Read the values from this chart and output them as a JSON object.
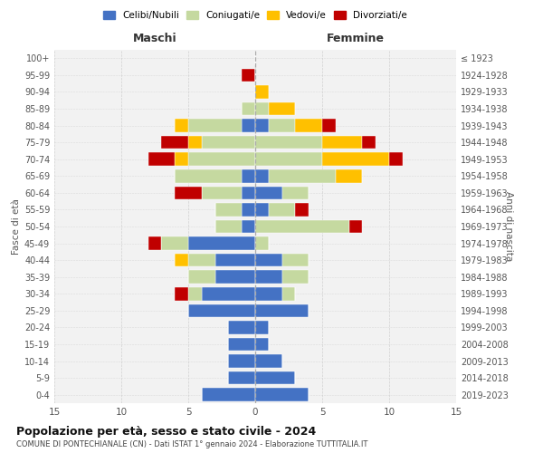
{
  "age_groups_bottom_to_top": [
    "0-4",
    "5-9",
    "10-14",
    "15-19",
    "20-24",
    "25-29",
    "30-34",
    "35-39",
    "40-44",
    "45-49",
    "50-54",
    "55-59",
    "60-64",
    "65-69",
    "70-74",
    "75-79",
    "80-84",
    "85-89",
    "90-94",
    "95-99",
    "100+"
  ],
  "birth_years_bottom_to_top": [
    "2019-2023",
    "2014-2018",
    "2009-2013",
    "2004-2008",
    "1999-2003",
    "1994-1998",
    "1989-1993",
    "1984-1988",
    "1979-1983",
    "1974-1978",
    "1969-1973",
    "1964-1968",
    "1959-1963",
    "1954-1958",
    "1949-1953",
    "1944-1948",
    "1939-1943",
    "1934-1938",
    "1929-1933",
    "1924-1928",
    "≤ 1923"
  ],
  "maschi_celibe": [
    4,
    2,
    2,
    2,
    2,
    5,
    4,
    3,
    3,
    5,
    1,
    1,
    1,
    1,
    0,
    0,
    1,
    0,
    0,
    0,
    0
  ],
  "maschi_coniugato": [
    0,
    0,
    0,
    0,
    0,
    0,
    1,
    2,
    2,
    2,
    2,
    2,
    3,
    5,
    5,
    4,
    4,
    1,
    0,
    0,
    0
  ],
  "maschi_vedovo": [
    0,
    0,
    0,
    0,
    0,
    0,
    0,
    0,
    1,
    0,
    0,
    0,
    0,
    0,
    1,
    1,
    1,
    0,
    0,
    0,
    0
  ],
  "maschi_divorziato": [
    0,
    0,
    0,
    0,
    0,
    0,
    1,
    0,
    0,
    1,
    0,
    0,
    2,
    0,
    2,
    2,
    0,
    0,
    0,
    1,
    0
  ],
  "femmine_celibe": [
    4,
    3,
    2,
    1,
    1,
    4,
    2,
    2,
    2,
    0,
    0,
    1,
    2,
    1,
    0,
    0,
    1,
    0,
    0,
    0,
    0
  ],
  "femmine_coniugato": [
    0,
    0,
    0,
    0,
    0,
    0,
    1,
    2,
    2,
    1,
    7,
    2,
    2,
    5,
    5,
    5,
    2,
    1,
    0,
    0,
    0
  ],
  "femmine_vedovo": [
    0,
    0,
    0,
    0,
    0,
    0,
    0,
    0,
    0,
    0,
    0,
    0,
    0,
    2,
    5,
    3,
    2,
    2,
    1,
    0,
    0
  ],
  "femmine_divorziato": [
    0,
    0,
    0,
    0,
    0,
    0,
    0,
    0,
    0,
    0,
    1,
    1,
    0,
    0,
    1,
    1,
    1,
    0,
    0,
    0,
    0
  ],
  "colors": {
    "celibe": "#4472c4",
    "coniugato": "#c5d9a0",
    "vedovo": "#ffc000",
    "divorziato": "#c00000"
  },
  "title1": "Popolazione per età, sesso e stato civile - 2024",
  "title2": "COMUNE DI PONTECHIANALE (CN) - Dati ISTAT 1° gennaio 2024 - Elaborazione TUTTITALIA.IT",
  "xlabel_left": "Maschi",
  "xlabel_right": "Femmine",
  "ylabel_left": "Fasce di età",
  "ylabel_right": "Anni di nascita",
  "xlim": 15,
  "legend_labels": [
    "Celibi/Nubili",
    "Coniugati/e",
    "Vedovi/e",
    "Divorziati/e"
  ],
  "bg_color": "#f2f2f2",
  "grid_color": "#cccccc"
}
